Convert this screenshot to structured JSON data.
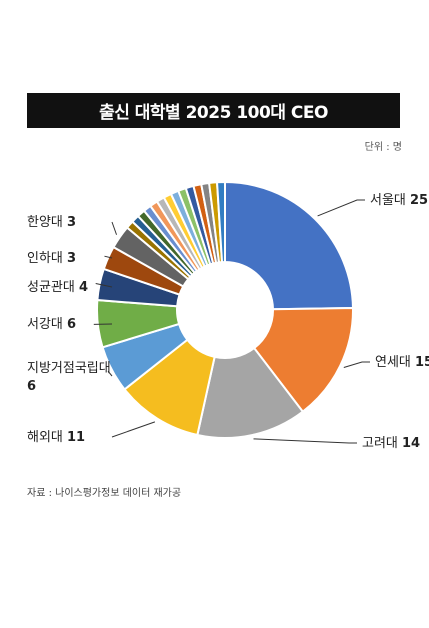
{
  "title": "출신 대학별 2025 100대 CEO",
  "unit": "단위 : 명",
  "source": "자료 : 나이스평가정보 데이터 재가공",
  "chart_data": {
    "type": "pie",
    "title": "출신 대학별 2025 100대 CEO",
    "slices": [
      {
        "label": "서울대",
        "value": 25,
        "color": "#4472c4",
        "labeled": true
      },
      {
        "label": "연세대",
        "value": 15,
        "color": "#ed7d31",
        "labeled": true
      },
      {
        "label": "고려대",
        "value": 14,
        "color": "#a5a5a5",
        "labeled": true
      },
      {
        "label": "해외대",
        "value": 11,
        "color": "#f5bd1f",
        "labeled": true
      },
      {
        "label": "지방거점국립대",
        "value": 6,
        "color": "#5b9bd5",
        "labeled": true
      },
      {
        "label": "서강대",
        "value": 6,
        "color": "#70ad47",
        "labeled": true
      },
      {
        "label": "성균관대",
        "value": 4,
        "color": "#264478",
        "labeled": true
      },
      {
        "label": "인하대",
        "value": 3,
        "color": "#9e480e",
        "labeled": true
      },
      {
        "label": "한양대",
        "value": 3,
        "color": "#636363",
        "labeled": true
      },
      {
        "label": "",
        "value": 1,
        "color": "#997300",
        "labeled": false
      },
      {
        "label": "",
        "value": 1,
        "color": "#255e91",
        "labeled": false
      },
      {
        "label": "",
        "value": 1,
        "color": "#43682b",
        "labeled": false
      },
      {
        "label": "",
        "value": 1,
        "color": "#698ed0",
        "labeled": false
      },
      {
        "label": "",
        "value": 1,
        "color": "#f1975a",
        "labeled": false
      },
      {
        "label": "",
        "value": 1,
        "color": "#b7b7b7",
        "labeled": false
      },
      {
        "label": "",
        "value": 1,
        "color": "#ffcd33",
        "labeled": false
      },
      {
        "label": "",
        "value": 1,
        "color": "#7cafdd",
        "labeled": false
      },
      {
        "label": "",
        "value": 1,
        "color": "#8cc168",
        "labeled": false
      },
      {
        "label": "",
        "value": 1,
        "color": "#335aa1",
        "labeled": false
      },
      {
        "label": "",
        "value": 1,
        "color": "#d26012",
        "labeled": false
      },
      {
        "label": "",
        "value": 1,
        "color": "#848484",
        "labeled": false
      },
      {
        "label": "",
        "value": 1,
        "color": "#cc9a00",
        "labeled": false
      },
      {
        "label": "",
        "value": 1,
        "color": "#327dc2",
        "labeled": false
      }
    ]
  }
}
